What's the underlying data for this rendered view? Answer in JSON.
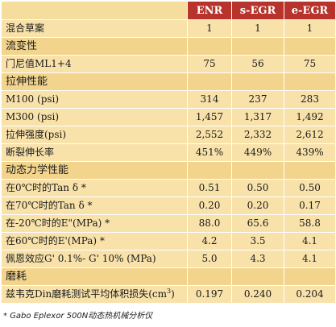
{
  "header": {
    "corner": "",
    "columns": [
      "ENR",
      "s-EGR",
      "e-EGR"
    ]
  },
  "rows": [
    {
      "type": "data",
      "label": "混合草案",
      "values": [
        "1",
        "1",
        "1"
      ]
    },
    {
      "type": "section",
      "label": "流变性"
    },
    {
      "type": "data",
      "label": "门尼值ML1+4",
      "values": [
        "75",
        "56",
        "75"
      ]
    },
    {
      "type": "section",
      "label": "拉伸性能"
    },
    {
      "type": "data",
      "label": "M100 (psi)",
      "values": [
        "314",
        "237",
        "283"
      ]
    },
    {
      "type": "data",
      "label": "M300 (psi)",
      "values": [
        "1,457",
        "1,317",
        "1,492"
      ]
    },
    {
      "type": "data",
      "label": "拉伸强度(psi)",
      "values": [
        "2,552",
        "2,332",
        "2,612"
      ]
    },
    {
      "type": "data",
      "label": "断裂伸长率",
      "values": [
        "451%",
        "449%",
        "439%"
      ]
    },
    {
      "type": "section",
      "label": "动态力学性能"
    },
    {
      "type": "data",
      "label": "在0℃时的Tan δ *",
      "values": [
        "0.51",
        "0.50",
        "0.50"
      ]
    },
    {
      "type": "data",
      "label": "在70℃时的Tan δ *",
      "values": [
        "0.20",
        "0.20",
        "0.17"
      ]
    },
    {
      "type": "data",
      "label": "在-20℃时的E\"(MPa) *",
      "values": [
        "88.0",
        "65.6",
        "58.8"
      ]
    },
    {
      "type": "data",
      "label": "在60℃时的E'(MPa) *",
      "values": [
        "4.2",
        "3.5",
        "4.1"
      ]
    },
    {
      "type": "data",
      "label": "佩恩效应G' 0.1%- G' 10% (MPa)",
      "values": [
        "5.0",
        "4.3",
        "4.1"
      ]
    },
    {
      "type": "section",
      "label": "磨耗"
    },
    {
      "type": "data",
      "label": "兹韦克Din磨耗测试平均体积损失(cm",
      "label_sup": "3",
      "label_tail": ")",
      "values": [
        "0.197",
        "0.240",
        "0.204"
      ]
    }
  ],
  "footnote": "* Gabo Eplexor 500N动态热机械分析仪",
  "colors": {
    "header_bg": "#b7332c",
    "header_text": "#ffffff",
    "section_bg": "#f3d48c",
    "row_bg": "#f8e2aa"
  }
}
